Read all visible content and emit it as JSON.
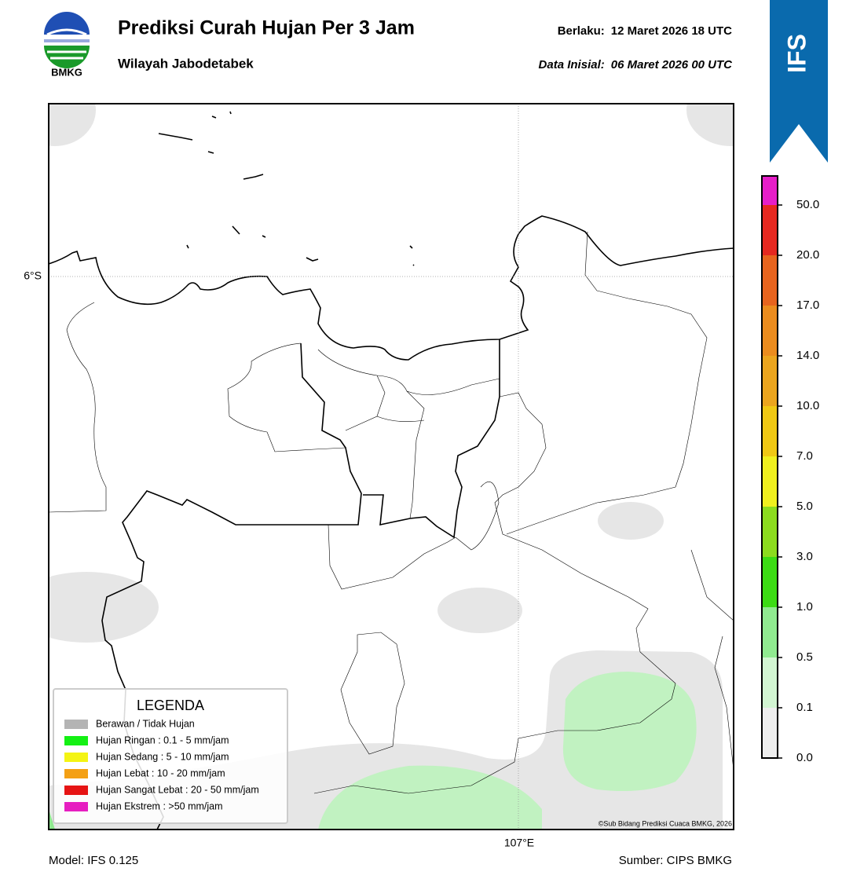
{
  "header": {
    "logo_text": "BMKG",
    "title": "Prediksi Curah Hujan Per 3 Jam",
    "subtitle": "Wilayah Jabodetabek",
    "valid_label": "Berlaku:",
    "valid_time": "12 Maret 2026 18 UTC",
    "init_label": "Data Inisial:",
    "init_time": "06 Maret 2026 00 UTC"
  },
  "badge": "IFS",
  "map": {
    "lat_label": "6°S",
    "lon_label": "107°E",
    "credit": "©Sub Bidang Prediksi Cuaca BMKG, 2026"
  },
  "legend": {
    "title": "LEGENDA",
    "items": [
      {
        "label": "Berawan / Tidak Hujan",
        "color": "#b4b4b4"
      },
      {
        "label": "Hujan Ringan : 0.1 - 5 mm/jam",
        "color": "#14f014"
      },
      {
        "label": "Hujan Sedang : 5 - 10 mm/jam",
        "color": "#f4f414"
      },
      {
        "label": "Hujan Lebat : 10 - 20 mm/jam",
        "color": "#f4a014"
      },
      {
        "label": "Hujan Sangat Lebat : 20 - 50 mm/jam",
        "color": "#e61414"
      },
      {
        "label": "Hujan Ekstrem : >50 mm/jam",
        "color": "#e61ec0"
      }
    ]
  },
  "colorbar": {
    "labels": [
      "0.0",
      "0.1",
      "0.5",
      "1.0",
      "3.0",
      "5.0",
      "7.0",
      "10.0",
      "14.0",
      "17.0",
      "20.0",
      "50.0"
    ],
    "colors": [
      "#eeeeee",
      "#d2f5d2",
      "#90ea90",
      "#3cdc14",
      "#8cdc1e",
      "#f0f01e",
      "#f0c814",
      "#eca51e",
      "#ec8c1e",
      "#e8641e",
      "#e62820",
      "#e61ec8"
    ]
  },
  "footer": {
    "model": "Model: IFS 0.125",
    "source": "Sumber: CIPS BMKG"
  }
}
